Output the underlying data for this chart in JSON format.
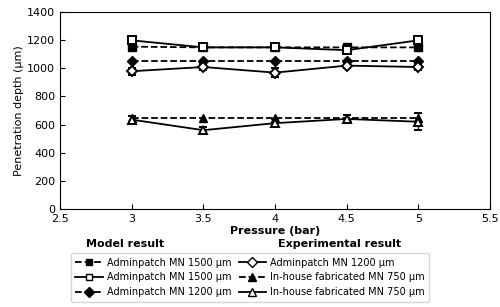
{
  "pressure": [
    3,
    3.5,
    4,
    4.5,
    5
  ],
  "model_MN1500": [
    1155,
    1150,
    1150,
    1150,
    1150
  ],
  "model_MN1200": [
    1050,
    1050,
    1050,
    1050,
    1050
  ],
  "model_MN750": [
    645,
    645,
    645,
    645,
    645
  ],
  "exp_MN1500": [
    1200,
    1150,
    1150,
    1130,
    1200
  ],
  "exp_MN1200": [
    980,
    1010,
    970,
    1020,
    1010
  ],
  "exp_MN750": [
    635,
    560,
    610,
    640,
    620
  ],
  "exp_MN1500_err": [
    30,
    20,
    20,
    20,
    30
  ],
  "exp_MN1200_err": [
    25,
    20,
    30,
    20,
    20
  ],
  "exp_MN750_err": [
    25,
    20,
    30,
    30,
    60
  ],
  "xlim": [
    2.5,
    5.5
  ],
  "ylim": [
    0,
    1400
  ],
  "yticks": [
    0,
    200,
    400,
    600,
    800,
    1000,
    1200,
    1400
  ],
  "xticks": [
    2.5,
    3,
    3.5,
    4,
    4.5,
    5,
    5.5
  ],
  "xlabel": "Pressure (bar)",
  "ylabel": "Penetration depth (μm)",
  "color": "black",
  "label_model_1500": "Adminpatch MN 1500 μm",
  "label_model_1200": "Adminpatch MN 1200 μm",
  "label_model_750": "In-house fabricated MN 750 μm",
  "label_exp_1500": "Adminpatch MN 1500 μm",
  "label_exp_1200": "Adminpatch MN 1200 μm",
  "label_exp_750": "In-house fabricated MN 750 μm"
}
